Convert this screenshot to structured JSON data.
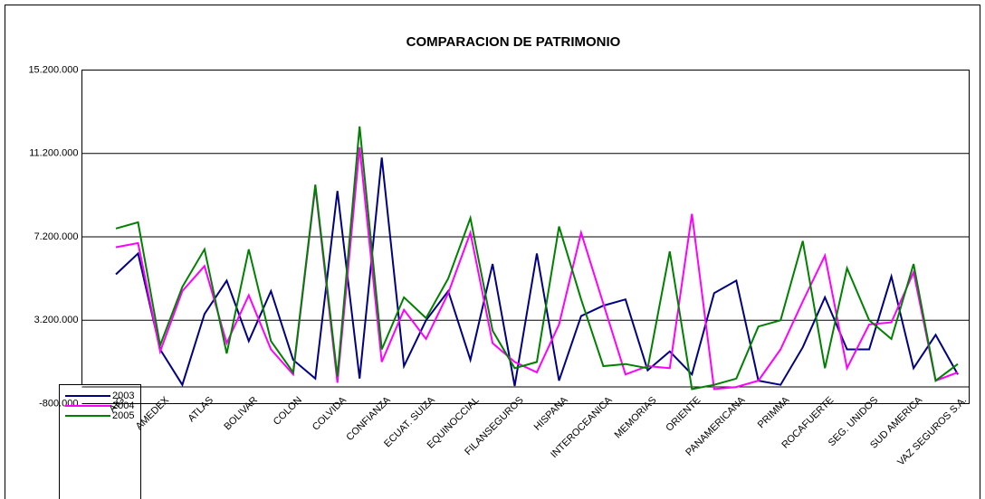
{
  "chart_data": {
    "type": "line",
    "title": "COMPARACION DE PATRIMONIO",
    "categories": [
      "AIG",
      null,
      "AMEDEX",
      null,
      "ATLAS",
      null,
      "BOLIVAR",
      null,
      "COLON",
      null,
      "COLVIDA",
      null,
      "CONFIANZA",
      null,
      "ECUAT. SUIZA",
      null,
      "EQUINOCCIAL",
      null,
      "FILANSEGUROS",
      null,
      "HISPANA",
      null,
      "INTEROCEANICA",
      null,
      "MEMORIAS",
      null,
      "ORIENTE",
      null,
      "PANAMERICANA",
      null,
      "PRIMMA",
      null,
      "ROCAFUERTE",
      null,
      "SEG. UNIDOS",
      null,
      "SUD AMERICA",
      null,
      "VAZ SEGUROS S.A."
    ],
    "series": [
      {
        "name": "2003",
        "color": "#000080",
        "values": [
          5400000,
          6400000,
          1800000,
          100000,
          3500000,
          5100000,
          2200000,
          4600000,
          1300000,
          400000,
          9400000,
          400000,
          11000000,
          1000000,
          3200000,
          4600000,
          1300000,
          5900000,
          50000,
          6400000,
          300000,
          3400000,
          3900000,
          4200000,
          800000,
          1700000,
          600000,
          4500000,
          5100000,
          300000,
          100000,
          1900000,
          4300000,
          1800000,
          1800000,
          5300000,
          900000,
          2500000,
          600000
        ]
      },
      {
        "name": "2004",
        "color": "#ff00ff",
        "values": [
          6700000,
          6900000,
          1700000,
          4600000,
          5800000,
          2100000,
          4400000,
          1800000,
          600000,
          9600000,
          200000,
          11500000,
          1200000,
          3700000,
          2300000,
          4500000,
          7400000,
          2100000,
          1200000,
          700000,
          3000000,
          7400000,
          4000000,
          600000,
          1000000,
          900000,
          8300000,
          -100000,
          0,
          300000,
          1800000,
          4100000,
          6300000,
          900000,
          3000000,
          3100000,
          5500000,
          300000,
          700000
        ]
      },
      {
        "name": "2005",
        "color": "#008000",
        "values": [
          7600000,
          7900000,
          2000000,
          4800000,
          6600000,
          1600000,
          6600000,
          2200000,
          700000,
          9700000,
          500000,
          12500000,
          1800000,
          4300000,
          3300000,
          5200000,
          8100000,
          2700000,
          900000,
          1200000,
          7700000,
          4200000,
          1000000,
          1100000,
          900000,
          6500000,
          -100000,
          100000,
          400000,
          2900000,
          3200000,
          7000000,
          900000,
          5700000,
          3200000,
          2300000,
          5900000,
          300000,
          1100000
        ]
      }
    ],
    "ylim": [
      -800000,
      15200000
    ],
    "yticks": [
      {
        "value": -800000,
        "label": "-800.000"
      },
      {
        "value": 3200000,
        "label": "3.200.000"
      },
      {
        "value": 7200000,
        "label": "7.200.000"
      },
      {
        "value": 11200000,
        "label": "11.200.000"
      },
      {
        "value": 15200000,
        "label": "15.200.000"
      }
    ],
    "grid": true,
    "legend": "bottom-left"
  }
}
